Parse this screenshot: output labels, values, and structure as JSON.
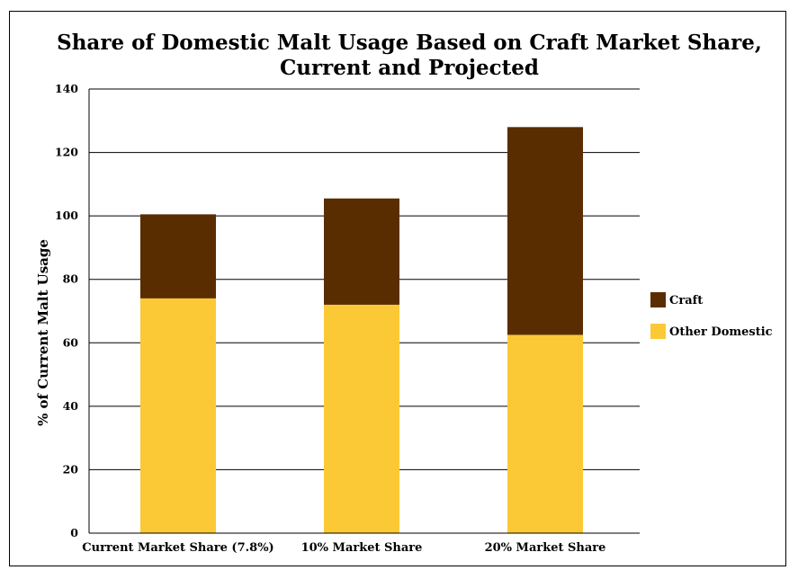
{
  "chart_data": {
    "type": "bar",
    "stacked": true,
    "title_lines": [
      "Share of Domestic Malt Usage Based on Craft Market Share,",
      "Current and Projected"
    ],
    "ylabel": "% of Current Malt Usage",
    "xlabel": "",
    "ylim": [
      0,
      140
    ],
    "yticks": [
      0,
      20,
      40,
      60,
      80,
      100,
      120,
      140
    ],
    "grid": true,
    "legend_position": "right",
    "categories": [
      "Current Market Share (7.8%)",
      "10% Market Share",
      "20% Market Share"
    ],
    "series": [
      {
        "name": "Other Domestic",
        "values": [
          74,
          72,
          62.5
        ],
        "color": "#fcc936"
      },
      {
        "name": "Craft",
        "values": [
          26.5,
          33.5,
          65.5
        ],
        "color": "#5a2d00"
      }
    ],
    "legend_order": [
      "Craft",
      "Other Domestic"
    ]
  }
}
